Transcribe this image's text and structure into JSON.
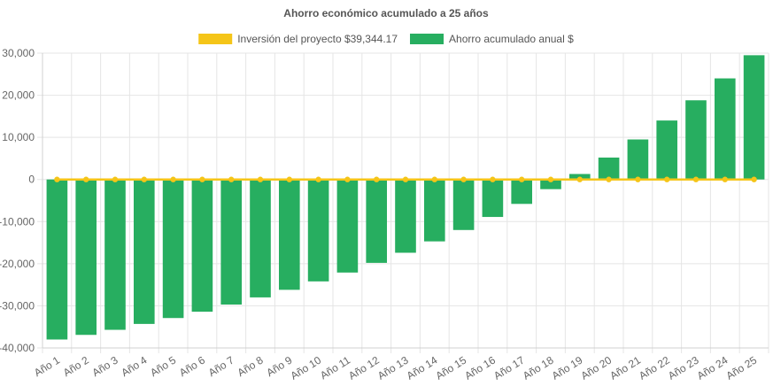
{
  "chart_data": {
    "type": "bar",
    "title": "Ahorro económico acumulado a 25 años",
    "xlabel": "",
    "ylabel": "",
    "legend_position": "top",
    "grid": true,
    "categories": [
      "Año 1",
      "Año 2",
      "Año 3",
      "Año 4",
      "Año 5",
      "Año 6",
      "Año 7",
      "Año 8",
      "Año 9",
      "Año 10",
      "Año 11",
      "Año 12",
      "Año 13",
      "Año 14",
      "Año 15",
      "Año 16",
      "Año 17",
      "Año 18",
      "Año 19",
      "Año 20",
      "Año 21",
      "Año 22",
      "Año 23",
      "Año 24",
      "Año 25"
    ],
    "ylim": [
      -40000,
      30000
    ],
    "yticks": [
      30000,
      20000,
      10000,
      0,
      -10000,
      -20000,
      -30000,
      -40000
    ],
    "ytick_labels": [
      "30,000",
      "20,000",
      "10,000",
      "0",
      "-10,000",
      "-20,000",
      "-30,000",
      "-40,000"
    ],
    "series": [
      {
        "name": "Inversión del proyecto $39,344.17",
        "type": "line",
        "color": "#f5c518",
        "values": [
          0,
          0,
          0,
          0,
          0,
          0,
          0,
          0,
          0,
          0,
          0,
          0,
          0,
          0,
          0,
          0,
          0,
          0,
          0,
          0,
          0,
          0,
          0,
          0,
          0
        ]
      },
      {
        "name": "Ahorro acumulado anual $",
        "type": "bar",
        "color": "#27ae60",
        "values": [
          -38000,
          -36900,
          -35700,
          -34300,
          -32900,
          -31400,
          -29700,
          -28000,
          -26200,
          -24200,
          -22100,
          -19800,
          -17400,
          -14700,
          -12000,
          -8900,
          -5800,
          -2300,
          1300,
          5200,
          9500,
          14000,
          18800,
          24000,
          29500
        ]
      }
    ]
  }
}
